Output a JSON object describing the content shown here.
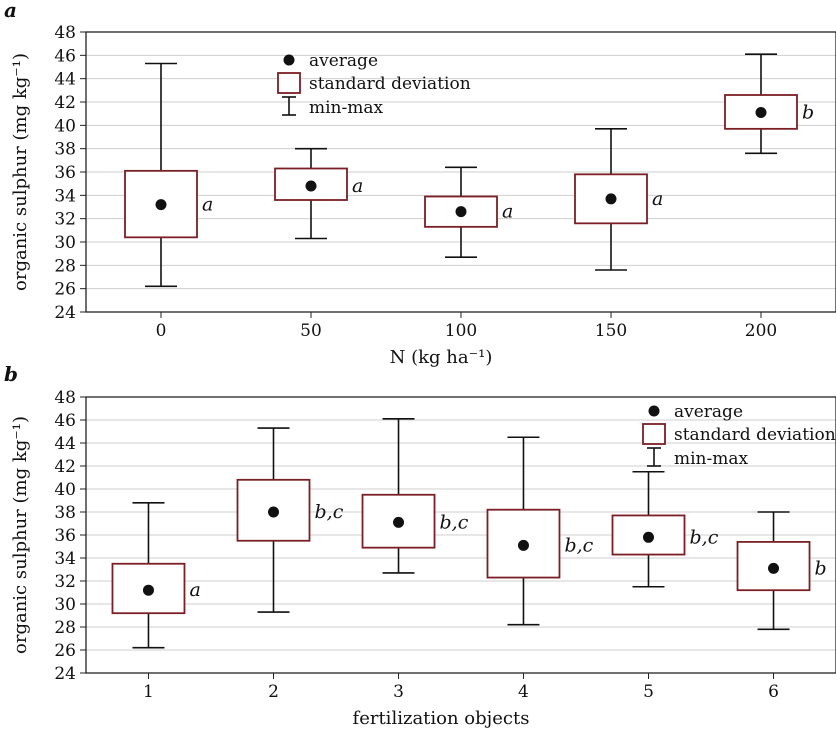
{
  "colors": {
    "box_stroke": "#7a1f25",
    "whisker": "#111111",
    "mean_dot": "#111111",
    "grid": "#cfcfcf",
    "frame": "#222222"
  },
  "chart_data": [
    {
      "type": "box",
      "panel_label": "a",
      "xlabel": "N (kg ha⁻¹)",
      "ylabel": "organic  sulphur  (mg kg⁻¹)",
      "ylim": [
        24,
        48
      ],
      "yticks": [
        "24",
        "26",
        "28",
        "30",
        "32",
        "34",
        "36",
        "38",
        "40",
        "42",
        "44",
        "46",
        "48"
      ],
      "grid": true,
      "legend": {
        "placement": "top-center",
        "average": "average",
        "sd": "standard deviation",
        "minmax": "min-max"
      },
      "categories": [
        "0",
        "50",
        "100",
        "150",
        "200"
      ],
      "series": [
        {
          "x": "0",
          "mean": 33.2,
          "sd_low": 30.4,
          "sd_high": 36.1,
          "min": 26.2,
          "max": 45.3,
          "letter": "a"
        },
        {
          "x": "50",
          "mean": 34.8,
          "sd_low": 33.6,
          "sd_high": 36.3,
          "min": 30.3,
          "max": 38.0,
          "letter": "a"
        },
        {
          "x": "100",
          "mean": 32.6,
          "sd_low": 31.3,
          "sd_high": 33.9,
          "min": 28.7,
          "max": 36.4,
          "letter": "a"
        },
        {
          "x": "150",
          "mean": 33.7,
          "sd_low": 31.6,
          "sd_high": 35.8,
          "min": 27.6,
          "max": 39.7,
          "letter": "a"
        },
        {
          "x": "200",
          "mean": 41.1,
          "sd_low": 39.7,
          "sd_high": 42.6,
          "min": 37.6,
          "max": 46.1,
          "letter": "b"
        }
      ]
    },
    {
      "type": "box",
      "panel_label": "b",
      "xlabel": "fertilization objects",
      "ylabel": "organic  sulphur  (mg kg⁻¹)",
      "ylim": [
        24,
        48
      ],
      "yticks": [
        "24",
        "26",
        "28",
        "30",
        "32",
        "34",
        "36",
        "38",
        "40",
        "42",
        "44",
        "46",
        "48"
      ],
      "grid": true,
      "legend": {
        "placement": "top-right",
        "average": "average",
        "sd": "standard deviation",
        "minmax": "min-max"
      },
      "categories": [
        "1",
        "2",
        "3",
        "4",
        "5",
        "6"
      ],
      "series": [
        {
          "x": "1",
          "mean": 31.2,
          "sd_low": 29.2,
          "sd_high": 33.5,
          "min": 26.2,
          "max": 38.8,
          "letter": "a"
        },
        {
          "x": "2",
          "mean": 38.0,
          "sd_low": 35.5,
          "sd_high": 40.8,
          "min": 29.3,
          "max": 45.3,
          "letter": "b,c"
        },
        {
          "x": "3",
          "mean": 37.1,
          "sd_low": 34.9,
          "sd_high": 39.5,
          "min": 32.7,
          "max": 46.1,
          "letter": "b,c"
        },
        {
          "x": "4",
          "mean": 35.1,
          "sd_low": 32.3,
          "sd_high": 38.2,
          "min": 28.2,
          "max": 44.5,
          "letter": "b,c"
        },
        {
          "x": "5",
          "mean": 35.8,
          "sd_low": 34.3,
          "sd_high": 37.7,
          "min": 31.5,
          "max": 41.5,
          "letter": "b,c"
        },
        {
          "x": "6",
          "mean": 33.1,
          "sd_low": 31.2,
          "sd_high": 35.4,
          "min": 27.8,
          "max": 38.0,
          "letter": "b"
        }
      ]
    }
  ]
}
